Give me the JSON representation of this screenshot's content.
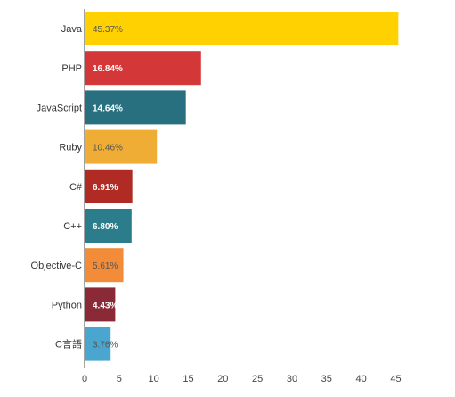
{
  "chart_data": {
    "type": "bar",
    "orientation": "horizontal",
    "categories": [
      "Java",
      "PHP",
      "JavaScript",
      "Ruby",
      "C#",
      "C++",
      "Objective-C",
      "Python",
      "C言語"
    ],
    "values": [
      45.37,
      16.84,
      14.64,
      10.46,
      6.91,
      6.8,
      5.61,
      4.43,
      3.76
    ],
    "value_labels": [
      "45.37%",
      "16.84%",
      "14.64%",
      "10.46%",
      "6.91%",
      "6.80%",
      "5.61%",
      "4.43%",
      "3.76%"
    ],
    "colors": [
      "#ffd100",
      "#d43737",
      "#28707f",
      "#f0ad35",
      "#b02b24",
      "#2b7d8c",
      "#f28c38",
      "#8b2a37",
      "#4aa6cf"
    ],
    "label_bold": [
      false,
      true,
      true,
      false,
      true,
      true,
      false,
      true,
      false
    ],
    "xlim": [
      0,
      47
    ],
    "xticks": [
      0,
      5,
      10,
      15,
      20,
      25,
      30,
      35,
      40,
      45
    ],
    "title": "",
    "xlabel": "",
    "ylabel": "",
    "grid": false,
    "legend": "none"
  }
}
